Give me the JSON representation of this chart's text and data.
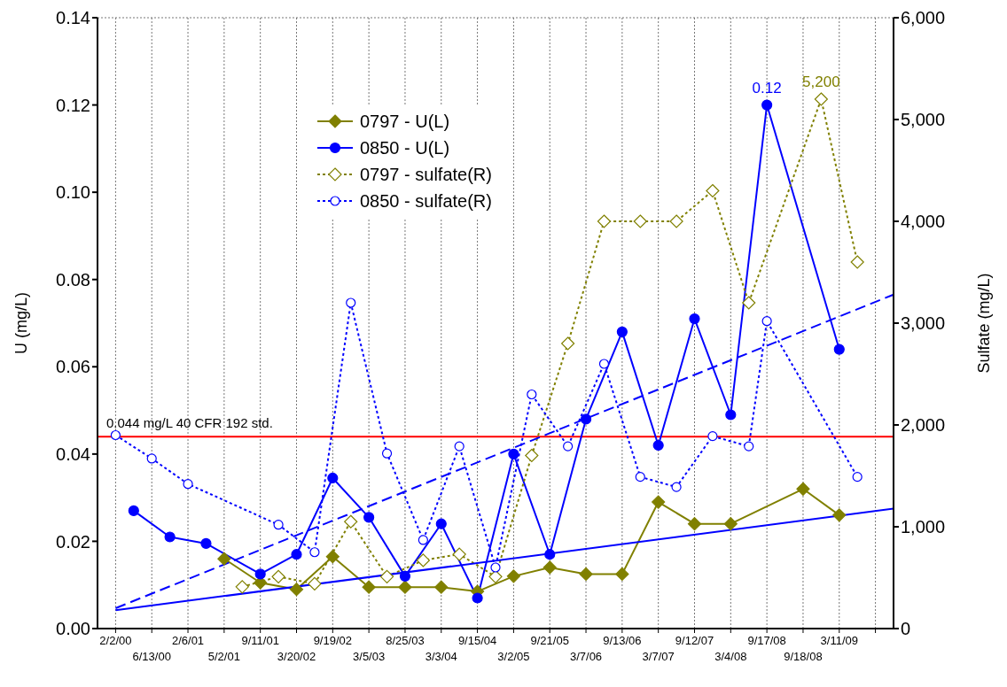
{
  "chart_data": {
    "type": "line",
    "categories": [
      "2/2/00",
      null,
      "6/13/00",
      null,
      "2/6/01",
      null,
      "5/2/01",
      null,
      "9/11/01",
      null,
      "3/20/02",
      null,
      "9/19/02",
      null,
      "3/5/03",
      null,
      "8/25/03",
      null,
      "3/3/04",
      null,
      "9/15/04",
      null,
      "3/2/05",
      null,
      "9/21/05",
      null,
      "3/7/06",
      null,
      "9/13/06",
      null,
      "3/7/07",
      null,
      "9/12/07",
      null,
      "3/4/08",
      null,
      "9/17/08",
      null,
      "9/18/08",
      null,
      "3/11/09",
      null,
      null,
      null
    ],
    "ylabel": "U (mg/L)",
    "y2label": "Sulfate (mg/L)",
    "ylim": [
      0,
      0.14
    ],
    "yticks": [
      {
        "value": 0,
        "label": "0.00"
      },
      {
        "value": 0.02,
        "label": "0.02"
      },
      {
        "value": 0.04,
        "label": "0.04"
      },
      {
        "value": 0.06,
        "label": "0.06"
      },
      {
        "value": 0.08,
        "label": "0.08"
      },
      {
        "value": 0.1,
        "label": "0.10"
      },
      {
        "value": 0.12,
        "label": "0.12"
      },
      {
        "value": 0.14,
        "label": "0.14"
      }
    ],
    "y2lim": [
      0,
      6000
    ],
    "y2ticks": [
      {
        "value": 0,
        "label": "0"
      },
      {
        "value": 1000,
        "label": "1,000"
      },
      {
        "value": 2000,
        "label": "2,000"
      },
      {
        "value": 3000,
        "label": "3,000"
      },
      {
        "value": 4000,
        "label": "4,000"
      },
      {
        "value": 5000,
        "label": "5,000"
      },
      {
        "value": 6000,
        "label": "6,000"
      }
    ],
    "grid": true,
    "legend": "top left",
    "ref_lines": [
      {
        "axis": "y",
        "value": 0.044,
        "label": "0.044 mg/L 40 CFR 192 std.",
        "color": "#ff0000"
      }
    ],
    "series": [
      {
        "name": "0797 - U(L)",
        "color": "#808000",
        "marker": "diamond",
        "line_style": "solid",
        "values": [
          null,
          null,
          null,
          null,
          null,
          null,
          0.016,
          null,
          0.0105,
          null,
          0.009,
          null,
          0.0165,
          null,
          0.0095,
          null,
          0.0095,
          null,
          0.0095,
          null,
          0.0085,
          null,
          0.012,
          null,
          0.014,
          null,
          0.0125,
          null,
          0.0125,
          null,
          0.029,
          null,
          0.024,
          null,
          0.024,
          null,
          null,
          null,
          0.032,
          null,
          0.026,
          null,
          null,
          null
        ]
      },
      {
        "name": "0850 - U(L)",
        "color": "#0000ff",
        "marker": "circle",
        "line_style": "solid",
        "values": [
          null,
          0.027,
          null,
          0.021,
          null,
          0.0195,
          null,
          null,
          0.0125,
          null,
          0.017,
          null,
          0.0345,
          null,
          0.0255,
          null,
          0.012,
          null,
          0.024,
          null,
          0.007,
          null,
          0.04,
          null,
          0.017,
          null,
          0.048,
          null,
          0.068,
          null,
          0.042,
          null,
          0.071,
          null,
          0.049,
          null,
          0.12,
          null,
          null,
          null,
          0.064,
          null,
          null,
          null
        ],
        "value_labels": [
          null,
          null,
          null,
          null,
          null,
          null,
          null,
          null,
          null,
          null,
          null,
          null,
          null,
          null,
          null,
          null,
          null,
          null,
          null,
          null,
          null,
          null,
          null,
          null,
          null,
          null,
          null,
          null,
          null,
          null,
          null,
          null,
          null,
          null,
          null,
          null,
          "0.12",
          null,
          null,
          null,
          null,
          null,
          null,
          null
        ]
      },
      {
        "name": "0797 - sulfate(R)",
        "color": "#808000",
        "marker": "diamond",
        "line_style": "dotted",
        "axis": "y2",
        "values": [
          null,
          null,
          null,
          null,
          null,
          null,
          null,
          410,
          null,
          510,
          null,
          440,
          null,
          1050,
          null,
          510,
          null,
          670,
          null,
          730,
          null,
          510,
          null,
          1700,
          null,
          2800,
          null,
          4000,
          null,
          4000,
          null,
          4000,
          null,
          4300,
          null,
          3200,
          null,
          null,
          null,
          5200,
          null,
          3600,
          null,
          null
        ],
        "value_labels": [
          null,
          null,
          null,
          null,
          null,
          null,
          null,
          null,
          null,
          null,
          null,
          null,
          null,
          null,
          null,
          null,
          null,
          null,
          null,
          null,
          null,
          null,
          null,
          null,
          null,
          null,
          null,
          null,
          null,
          null,
          null,
          null,
          null,
          null,
          null,
          null,
          null,
          null,
          null,
          "5,200",
          null,
          null,
          null,
          null
        ]
      },
      {
        "name": "0850 - sulfate(R)",
        "color": "#0000ff",
        "marker": "circle",
        "line_style": "dotted",
        "axis": "y2",
        "values": [
          1900,
          null,
          1670,
          null,
          1420,
          null,
          null,
          null,
          null,
          1020,
          null,
          750,
          null,
          3200,
          null,
          1720,
          null,
          870,
          null,
          1790,
          null,
          600,
          null,
          2300,
          null,
          1790,
          null,
          2600,
          null,
          1490,
          null,
          1390,
          null,
          1890,
          null,
          1790,
          3020,
          null,
          null,
          null,
          null,
          1490,
          null,
          null
        ]
      },
      {
        "type": "line",
        "color": "#0000ff",
        "marker": "none",
        "line_style": "solid",
        "values": [
          0.0042,
          null,
          null,
          null,
          null,
          null,
          null,
          null,
          null,
          null,
          null,
          null,
          null,
          null,
          null,
          null,
          null,
          null,
          null,
          null,
          null,
          null,
          null,
          null,
          null,
          null,
          null,
          null,
          null,
          null,
          null,
          null,
          null,
          null,
          null,
          null,
          null,
          null,
          null,
          null,
          null,
          null,
          null,
          0.0275
        ]
      },
      {
        "type": "line",
        "color": "#0000ff",
        "marker": "none",
        "line_style": "dashed",
        "axis": "y2",
        "values": [
          200,
          null,
          null,
          null,
          null,
          null,
          null,
          null,
          null,
          null,
          null,
          null,
          null,
          null,
          null,
          null,
          null,
          null,
          null,
          null,
          null,
          null,
          null,
          null,
          null,
          null,
          null,
          null,
          null,
          null,
          null,
          null,
          null,
          null,
          null,
          null,
          null,
          null,
          null,
          null,
          null,
          null,
          null,
          3280
        ]
      }
    ]
  }
}
